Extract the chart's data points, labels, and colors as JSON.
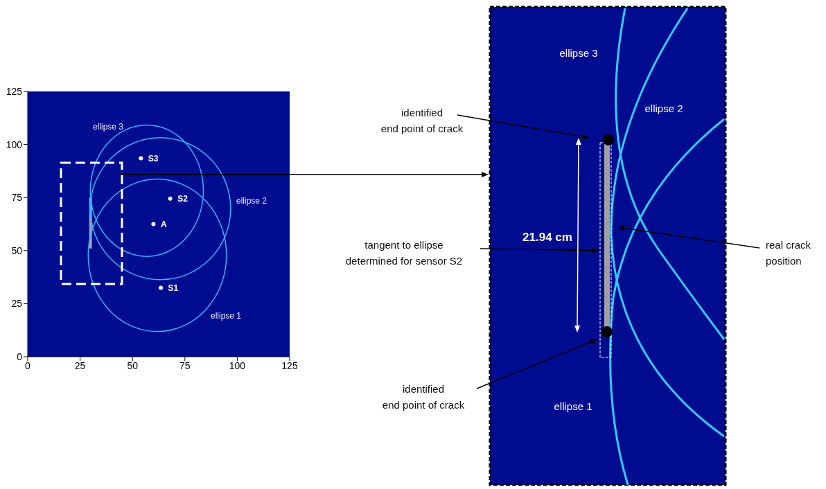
{
  "chart_data": [
    {
      "type": "scatter",
      "xlim": [
        0,
        125
      ],
      "ylim": [
        0,
        125
      ],
      "xticks": [
        0,
        25,
        50,
        75,
        100,
        125
      ],
      "yticks": [
        0,
        25,
        50,
        75,
        100,
        125
      ],
      "grid": false,
      "series": [
        {
          "type": "line",
          "color": "#a0a0a0",
          "marker": "none",
          "x": [
            30,
            30
          ],
          "values": [
            51,
            75
          ]
        },
        {
          "type": "scatter",
          "color": "#ffffff",
          "marker": "circle",
          "x": [
            63.5,
            68,
            54,
            60
          ],
          "values": [
            32.5,
            74.5,
            93.5,
            62.5
          ],
          "value_labels": [
            "S1",
            "S2",
            "S3",
            "A"
          ]
        }
      ],
      "annotations": [
        "ellipse 1",
        "ellipse 2",
        "ellipse 3"
      ]
    },
    {
      "type": "other",
      "annotations": [
        "ellipse 3",
        "ellipse 2",
        "ellipse 1",
        "identified\nend point of crack",
        "21.94 cm",
        "tangent to ellipse\ndetermined for sensor S2",
        "real crack\nposition",
        "identified\nend point of crack"
      ]
    }
  ]
}
